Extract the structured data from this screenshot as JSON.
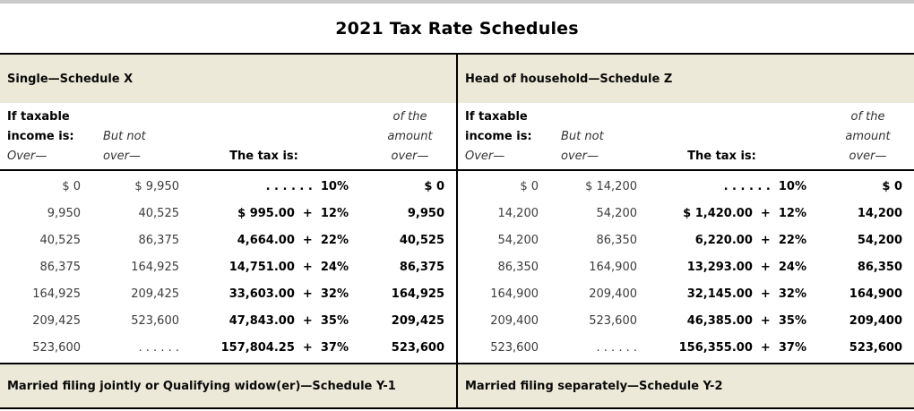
{
  "title": "2021 Tax Rate Schedules",
  "colors": {
    "band_background": "#ece9d8",
    "rule": "#000000",
    "top_strip": "#cbcbcb",
    "muted_text": "#3c3c3c"
  },
  "column_headers": {
    "line1_col1": "If taxable",
    "line2_col1": "income is:",
    "line3_col1": "Over—",
    "line2_col2": "But not",
    "line3_col2": "over—",
    "line3_col3": "The tax is:",
    "line1_col4": "of the",
    "line2_col4": "amount",
    "line3_col4": "over—"
  },
  "schedules": [
    {
      "name": "Single—Schedule X",
      "rows": [
        [
          "$ 0",
          "$ 9,950",
          ". . . . . .  10%",
          "$ 0"
        ],
        [
          "9,950",
          "40,525",
          "$ 995.00  +  12%",
          "9,950"
        ],
        [
          "40,525",
          "86,375",
          "4,664.00  +  22%",
          "40,525"
        ],
        [
          "86,375",
          "164,925",
          "14,751.00  +  24%",
          "86,375"
        ],
        [
          "164,925",
          "209,425",
          "33,603.00  +  32%",
          "164,925"
        ],
        [
          "209,425",
          "523,600",
          "47,843.00  +  35%",
          "209,425"
        ],
        [
          "523,600",
          ". . . . . .",
          "157,804.25  +  37%",
          "523,600"
        ]
      ]
    },
    {
      "name": "Head of household—Schedule Z",
      "rows": [
        [
          "$ 0",
          "$ 14,200",
          ". . . . . .  10%",
          "$ 0"
        ],
        [
          "14,200",
          "54,200",
          "$ 1,420.00  +  12%",
          "14,200"
        ],
        [
          "54,200",
          "86,350",
          "6,220.00  +  22%",
          "54,200"
        ],
        [
          "86,350",
          "164,900",
          "13,293.00  +  24%",
          "86,350"
        ],
        [
          "164,900",
          "209,400",
          "32,145.00  +  32%",
          "164,900"
        ],
        [
          "209,400",
          "523,600",
          "46,385.00  +  35%",
          "209,400"
        ],
        [
          "523,600",
          ". . . . . .",
          "156,355.00  +  37%",
          "523,600"
        ]
      ]
    }
  ],
  "footer_schedules": [
    {
      "name": "Married filing jointly or Qualifying widow(er)—Schedule Y-1"
    },
    {
      "name": "Married filing separately—Schedule Y-2"
    }
  ]
}
